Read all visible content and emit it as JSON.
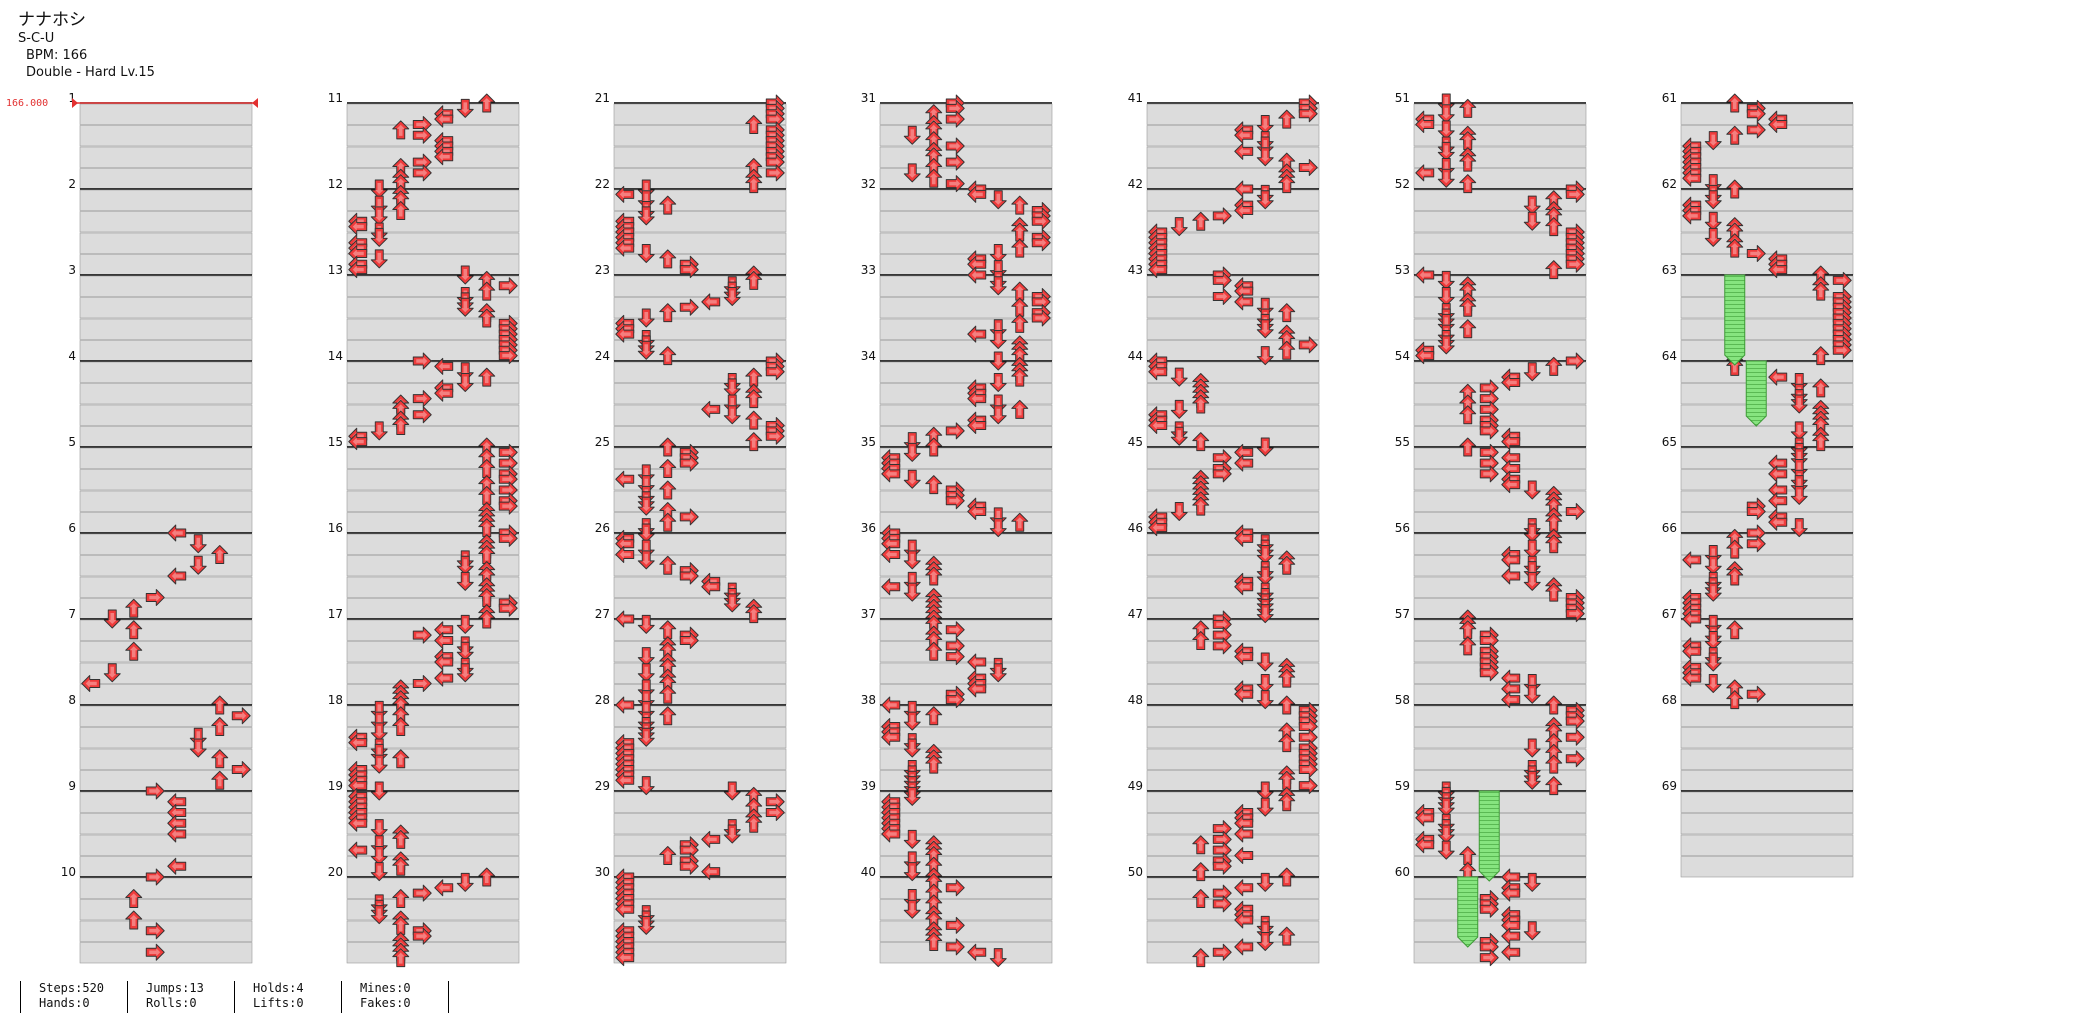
{
  "song": {
    "title": "ナナホシ",
    "artist": "S-C-U",
    "bpm_label": "BPM: 166",
    "difficulty_label": "Double - Hard Lv.15"
  },
  "bpm_marker": "166.000",
  "colors": {
    "red": "#ef3b3b",
    "blue": "#3a5cf2",
    "yellow": "#f3e94a",
    "hold": "#86e47f",
    "band": "#dcdcdc",
    "bpm": "#e23030"
  },
  "measures": [
    "1",
    "2",
    "3",
    "4",
    "5",
    "6",
    "7",
    "8",
    "9",
    "10",
    "11",
    "12",
    "13",
    "14",
    "15",
    "16",
    "17",
    "18",
    "19",
    "20",
    "21",
    "22",
    "23",
    "24",
    "25",
    "26",
    "27",
    "28",
    "29",
    "30",
    "31",
    "32",
    "33",
    "34",
    "35",
    "36",
    "37",
    "38",
    "39",
    "40",
    "41",
    "42",
    "43",
    "44",
    "45",
    "46",
    "47",
    "48",
    "49",
    "50",
    "51",
    "52",
    "53",
    "54",
    "55",
    "56",
    "57",
    "58",
    "59",
    "60",
    "61",
    "62",
    "63",
    "64",
    "65",
    "66",
    "67",
    "68",
    "69"
  ],
  "stats": [
    {
      "a": "Steps:520",
      "b": "Hands:0"
    },
    {
      "a": "Jumps:13",
      "b": "Rolls:0"
    },
    {
      "a": "Holds:4",
      "b": "Lifts:0"
    },
    {
      "a": "Mines:0",
      "b": "Fakes:0"
    }
  ]
}
